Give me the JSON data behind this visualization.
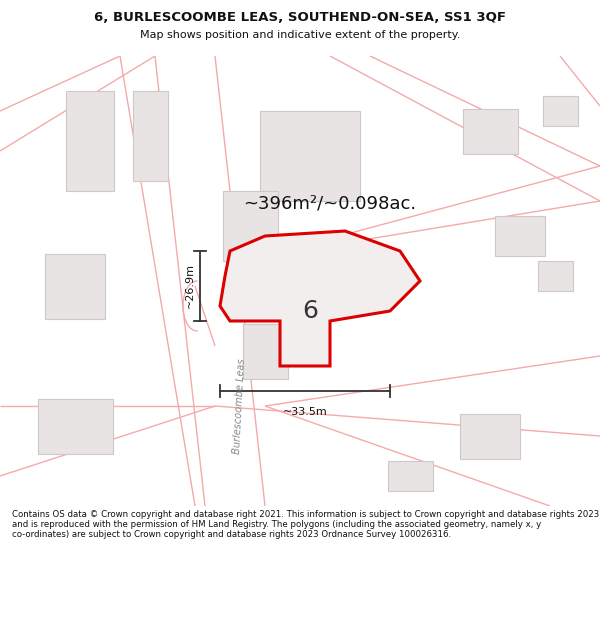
{
  "title_line1": "6, BURLESCOOMBE LEAS, SOUTHEND-ON-SEA, SS1 3QF",
  "title_line2": "Map shows position and indicative extent of the property.",
  "area_text": "~396m²/~0.098ac.",
  "dim_vertical": "~26.9m",
  "dim_horizontal": "~33.5m",
  "number_label": "6",
  "street_label": "Burlescoombe Leas",
  "footer": "Contains OS data © Crown copyright and database right 2021. This information is subject to Crown copyright and database rights 2023 and is reproduced with the permission of HM Land Registry. The polygons (including the associated geometry, namely x, y co-ordinates) are subject to Crown copyright and database rights 2023 Ordnance Survey 100026316.",
  "bg_color": "#ffffff",
  "map_bg": "#ffffff",
  "building_color": "#e8e4e4",
  "building_edge": "#d0c8c8",
  "road_color": "#f4aaaa",
  "road_lw": 1.0,
  "property_color": "#dd0000",
  "property_fill": "#f2eeee",
  "dim_line_color": "#333333",
  "title_color": "#111111",
  "footer_color": "#111111"
}
